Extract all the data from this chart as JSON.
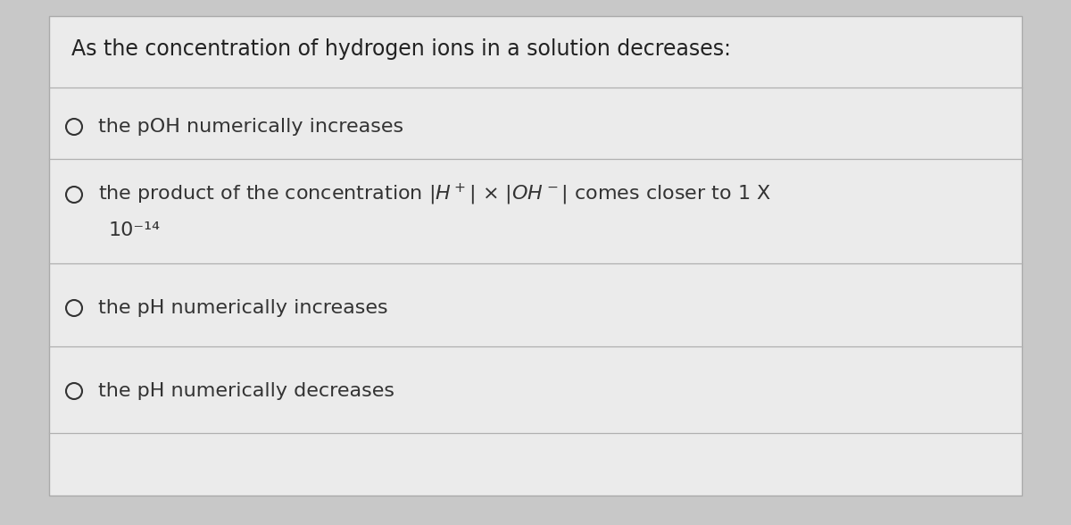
{
  "background_color": "#c8c8c8",
  "card_color": "#ebebeb",
  "card_border_color": "#aaaaaa",
  "title": "As the concentration of hydrogen ions in a solution decreases:",
  "title_fontsize": 17,
  "title_color": "#222222",
  "options": [
    {
      "text": "the pOH numerically increases"
    },
    {
      "text": "the product of the concentration",
      "formula": true,
      "line2": "10⁻¹⁴"
    },
    {
      "text": "the pH numerically increases"
    },
    {
      "text": "the pH numerically decreases"
    }
  ],
  "option_fontsize": 16,
  "option_color": "#333333",
  "divider_color": "#b0b0b0"
}
